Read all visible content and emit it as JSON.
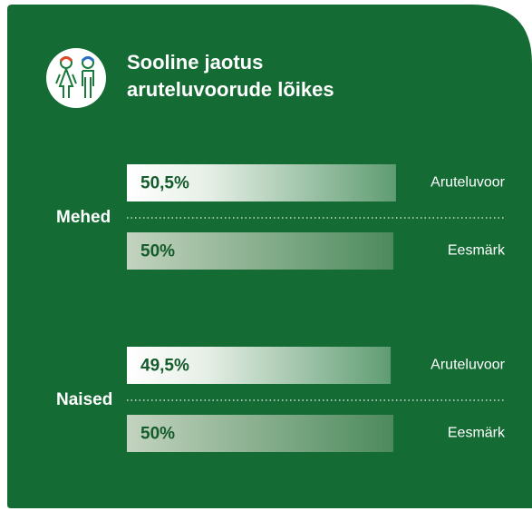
{
  "chart_data": {
    "type": "bar",
    "title": [
      "Sooline jaotus",
      "aruteluvoorude lõikes"
    ],
    "categories": [
      "Mehed",
      "Naised"
    ],
    "series": [
      {
        "name": "Aruteluvoor",
        "values": [
          50.5,
          49.5
        ],
        "value_labels": [
          "50,5%",
          "49,5%"
        ]
      },
      {
        "name": "Eesmärk",
        "values": [
          50,
          50
        ],
        "value_labels": [
          "50%",
          "50%"
        ]
      }
    ]
  }
}
